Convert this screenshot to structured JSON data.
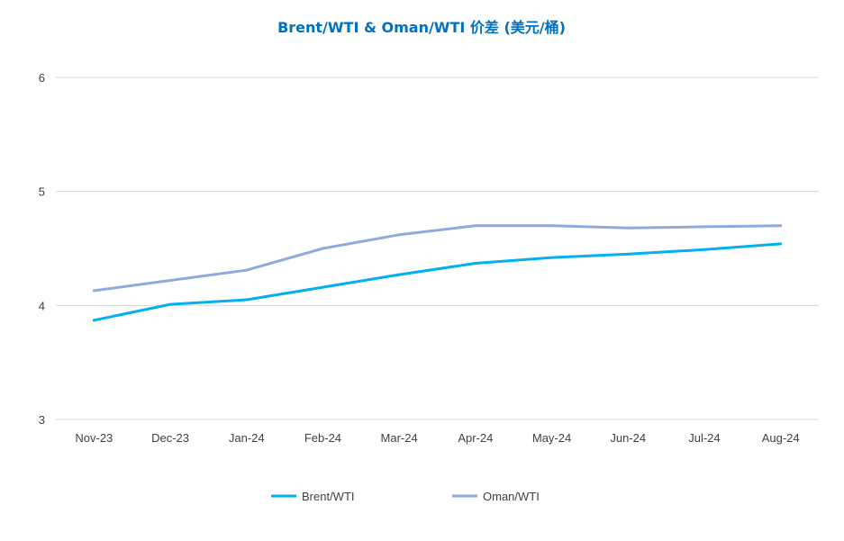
{
  "chart_data": {
    "type": "line",
    "title": "Brent/WTI & Oman/WTI 价差 (美元/桶)",
    "title_color": "#0070C0",
    "categories": [
      "Nov-23",
      "Dec-23",
      "Jan-24",
      "Feb-24",
      "Mar-24",
      "Apr-24",
      "May-24",
      "Jun-24",
      "Jul-24",
      "Aug-24"
    ],
    "ylim": [
      3,
      6
    ],
    "yticks": [
      "3",
      "4",
      "5",
      "6"
    ],
    "grid": true,
    "legend_position": "bottom",
    "series": [
      {
        "name": "Brent/WTI",
        "color": "#00B0F0",
        "values": [
          3.87,
          4.01,
          4.05,
          4.16,
          4.27,
          4.37,
          4.42,
          4.45,
          4.49,
          4.54
        ]
      },
      {
        "name": "Oman/WTI",
        "color": "#8FAADC",
        "values": [
          4.13,
          4.22,
          4.31,
          4.5,
          4.62,
          4.7,
          4.7,
          4.68,
          4.69,
          4.7
        ]
      }
    ]
  }
}
